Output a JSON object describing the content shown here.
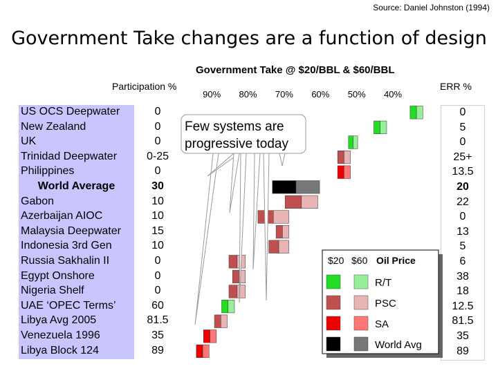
{
  "source": "Source: Daniel Johnston (1994)",
  "slide_title": "Government Take changes are a function of design",
  "chart_data": {
    "type": "bar",
    "title": "Government Take @ $20/BBL & $60/BBL",
    "participation_label": "Participation %",
    "err_label": "ERR %",
    "x_ticks": [
      "90%",
      "80%",
      "70%",
      "60%",
      "50%",
      "40%"
    ],
    "xlim": [
      95,
      32
    ],
    "rows": [
      {
        "name": "US OCS Deepwater",
        "participation": "0",
        "err": "0",
        "type": "R/T",
        "take_20": 34.5,
        "take_60": 32.5
      },
      {
        "name": "New Zealand",
        "participation": "0",
        "err": "5",
        "type": "R/T",
        "take_20": 44.5,
        "take_60": 42.5
      },
      {
        "name": "UK",
        "participation": "0",
        "err": "0",
        "type": "R/T",
        "take_20": 51.5,
        "take_60": 50.5
      },
      {
        "name": "Trinidad Deepwater",
        "participation": "0-25",
        "err": "25+",
        "type": "PSC",
        "take_20": 54.5,
        "take_60": 52.5
      },
      {
        "name": "Philippines",
        "participation": "0",
        "err": "13.5",
        "type": "SA",
        "take_20": 54.5,
        "take_60": 52.5
      },
      {
        "name": "World Average",
        "participation": "30",
        "err": "20",
        "type": "World Avg",
        "take_20": 72.5,
        "take_60": 61,
        "bold": true
      },
      {
        "name": "Gabon",
        "participation": "10",
        "err": "22",
        "type": "PSC",
        "take_20": 69,
        "take_60": 61.5
      },
      {
        "name": "Azerbaijan AIOC",
        "participation": "10",
        "err": "0",
        "type": "PSC",
        "take_20": 76.5,
        "take_60": 69.5
      },
      {
        "name": "Malaysia Deepwater",
        "participation": "15",
        "err": "13",
        "type": "PSC",
        "take_20": 71.5,
        "take_60": 69.5
      },
      {
        "name": "Indonesia 3rd Gen",
        "participation": "10",
        "err": "5",
        "type": "PSC",
        "take_20": 73.5,
        "take_60": 69.5
      },
      {
        "name": "Russia Sakhalin II",
        "participation": "0",
        "err": "6",
        "type": "PSC",
        "take_20": 84.5,
        "take_60": 81.5
      },
      {
        "name": "Egypt Onshore",
        "participation": "0",
        "err": "38",
        "type": "PSC",
        "take_20": 83.5,
        "take_60": 81.5
      },
      {
        "name": "Nigeria Shelf",
        "participation": "0",
        "err": "18",
        "type": "PSC",
        "take_20": 84.5,
        "take_60": 81.5
      },
      {
        "name": "UAE ‘OPEC Terms’",
        "participation": "60",
        "err": "12.5",
        "type": "R/T",
        "take_20": 86.5,
        "take_60": 84.5
      },
      {
        "name": "Libya Avg 2005",
        "participation": "81.5",
        "err": "81.5",
        "type": "PSC",
        "take_20": 88.5,
        "take_60": 86.5
      },
      {
        "name": "Venezuela 1996",
        "participation": "35",
        "err": "35",
        "type": "SA",
        "take_20": 91.5,
        "take_60": 89.5
      },
      {
        "name": "Libya Block 124",
        "participation": "89",
        "err": "89",
        "type": "SA",
        "take_20": 93.5,
        "take_60": 91.5
      }
    ],
    "legend": {
      "header_20": "$20",
      "header_60": "$60",
      "header_label": "Oil Price",
      "items": [
        {
          "label": "R/T",
          "color_20": "#22dd22",
          "color_60": "#99ee99"
        },
        {
          "label": "PSC",
          "color_20": "#c05050",
          "color_60": "#e8b4b4"
        },
        {
          "label": "SA",
          "color_20": "#ee0000",
          "color_60": "#ff7777"
        },
        {
          "label": "World Avg",
          "color_20": "#000000",
          "color_60": "#777777"
        }
      ]
    },
    "annotation": {
      "line1": "Few systems are",
      "line2": "progressive today"
    }
  }
}
